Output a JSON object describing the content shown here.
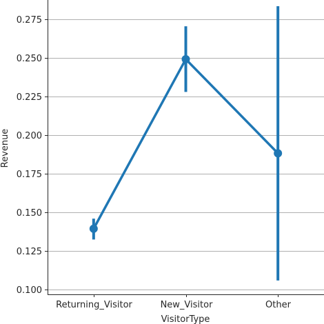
{
  "chart_data": {
    "type": "line",
    "xlabel": "VisitorType",
    "ylabel": "Revenue",
    "categories": [
      "Returning_Visitor",
      "New_Visitor",
      "Other"
    ],
    "series": [
      {
        "values": [
          0.1395,
          0.2492,
          0.1883
        ],
        "ci_low": [
          0.1325,
          0.228,
          0.106
        ],
        "ci_high": [
          0.146,
          0.2705,
          0.2835
        ]
      }
    ],
    "ylim": [
      0.097,
      0.2875
    ],
    "yticks": [
      0.1,
      0.125,
      0.15,
      0.175,
      0.2,
      0.225,
      0.25,
      0.275
    ],
    "ytick_labels": [
      "0.100",
      "0.125",
      "0.150",
      "0.175",
      "0.200",
      "0.225",
      "0.250",
      "0.275"
    ],
    "grid": "horizontal",
    "color": "#1f77b4"
  }
}
